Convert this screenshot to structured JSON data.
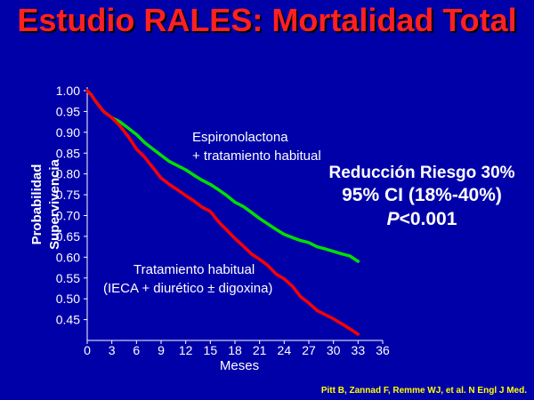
{
  "slide": {
    "title": "Estudio RALES: Mortalidad Total",
    "citation": "Pitt B, Zannad F, Remme WJ, et al. N Engl J Med.",
    "annotation_spiro_1": "Espironolactona",
    "annotation_spiro_2": "+ tratamiento habitual",
    "annotation_usual_1": "Tratamiento habitual",
    "annotation_usual_2": "(IECA + diurético ± digoxina)",
    "stat_line1": "Reducción Riesgo 30%",
    "stat_line2": "95% CI (18%-40%)",
    "stat_line3_p": "P",
    "stat_line3_rest": "<0.001"
  },
  "colors": {
    "background": "#0000a8",
    "title": "#ff2020",
    "text": "#ffffff",
    "citation": "#ffff00",
    "spironolactone": "#00e000",
    "usual": "#ff0000"
  },
  "chart_data": {
    "type": "line",
    "xlabel": "Meses",
    "ylabel_line1": "Probabilidad",
    "ylabel_line2": "Supervivencia",
    "xlim": [
      0,
      36
    ],
    "ylim": [
      0.4,
      1.0
    ],
    "xticks": [
      0,
      3,
      6,
      9,
      12,
      15,
      18,
      21,
      24,
      27,
      30,
      33,
      36
    ],
    "xtick_labels": [
      "0",
      "3",
      "6",
      "9",
      "12",
      "15",
      "18",
      "21",
      "24",
      "27",
      "30",
      "33",
      "36"
    ],
    "yticks": [
      1.0,
      0.95,
      0.9,
      0.85,
      0.8,
      0.75,
      0.7,
      0.65,
      0.6,
      0.55,
      0.5,
      0.45
    ],
    "ytick_labels": [
      "1.00",
      "0.95",
      "0.90",
      "0.85",
      "0.80",
      "0.75",
      "0.70",
      "0.65",
      "0.60",
      "0.55",
      "0.50",
      "0.45"
    ],
    "series": [
      {
        "key": "spironolactone",
        "color": "#00e000",
        "x": [
          0,
          0.5,
          1,
          2,
          3,
          4,
          5,
          6,
          7,
          8,
          9,
          10,
          11,
          12,
          13,
          14,
          15,
          16,
          17,
          18,
          19,
          20,
          21,
          22,
          23,
          24,
          25,
          26,
          27,
          28,
          29,
          30,
          31,
          32,
          33
        ],
        "y": [
          1.0,
          0.99,
          0.975,
          0.95,
          0.935,
          0.925,
          0.91,
          0.895,
          0.875,
          0.86,
          0.845,
          0.83,
          0.82,
          0.81,
          0.797,
          0.785,
          0.775,
          0.762,
          0.748,
          0.732,
          0.722,
          0.708,
          0.693,
          0.68,
          0.667,
          0.655,
          0.647,
          0.64,
          0.635,
          0.625,
          0.62,
          0.614,
          0.608,
          0.603,
          0.59
        ]
      },
      {
        "key": "usual",
        "color": "#ff0000",
        "x": [
          0,
          0.5,
          1,
          2,
          3,
          4,
          5,
          6,
          7,
          8,
          9,
          10,
          11,
          12,
          13,
          14,
          15,
          16,
          17,
          18,
          19,
          20,
          21,
          22,
          23,
          24,
          25,
          26,
          27,
          28,
          29,
          30,
          31,
          32,
          33
        ],
        "y": [
          1.0,
          0.99,
          0.975,
          0.95,
          0.935,
          0.915,
          0.89,
          0.86,
          0.84,
          0.815,
          0.79,
          0.775,
          0.762,
          0.748,
          0.735,
          0.72,
          0.71,
          0.685,
          0.665,
          0.645,
          0.627,
          0.608,
          0.595,
          0.58,
          0.56,
          0.548,
          0.53,
          0.505,
          0.49,
          0.472,
          0.462,
          0.452,
          0.44,
          0.428,
          0.415
        ]
      }
    ]
  }
}
